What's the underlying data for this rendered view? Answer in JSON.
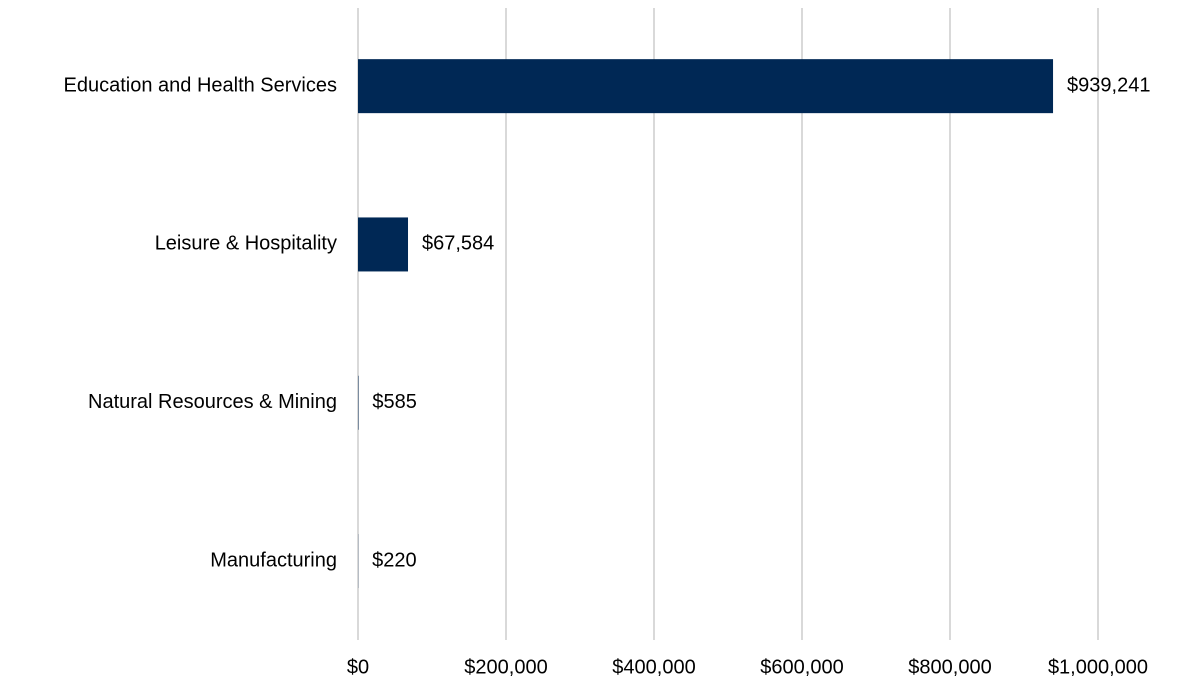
{
  "chart_data": {
    "type": "bar",
    "orientation": "horizontal",
    "categories": [
      "Education and Health Services",
      "Leisure & Hospitality",
      "Natural Resources & Mining",
      "Manufacturing"
    ],
    "values": [
      939241,
      67584,
      585,
      220
    ],
    "value_labels": [
      "$939,241",
      "$67,584",
      "$585",
      "$220"
    ],
    "color": "#002855",
    "xlim": [
      0,
      1000000
    ],
    "xticks": [
      {
        "value": 0,
        "label": "$0"
      },
      {
        "value": 200000,
        "label": "$200,000"
      },
      {
        "value": 400000,
        "label": "$400,000"
      },
      {
        "value": 600000,
        "label": "$600,000"
      },
      {
        "value": 800000,
        "label": "$800,000"
      },
      {
        "value": 1000000,
        "label": "$1,000,000"
      }
    ],
    "grid": true
  }
}
